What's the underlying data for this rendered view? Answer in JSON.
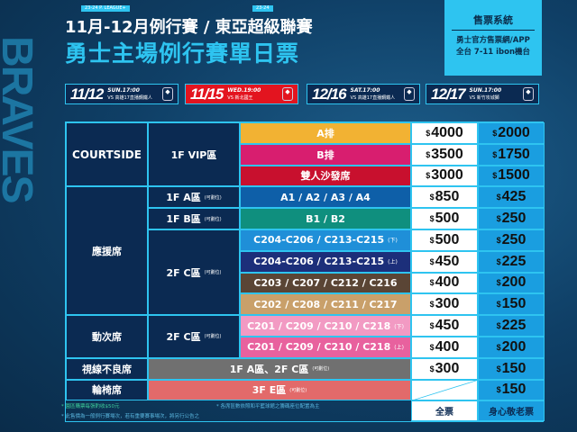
{
  "side_text": "BRAVES",
  "header": {
    "line1": "11月-12月例行賽 / 東亞超級聯賽",
    "line2": "勇士主場例行賽單日票",
    "tag1": "23-24 P. LEAGUE+",
    "tag2": "23-24"
  },
  "sales": {
    "title": "售票系統",
    "line1": "勇士官方售票網/APP",
    "line2": "全台 7-11 ibon機台"
  },
  "games": [
    {
      "date": "11/12",
      "time": "SUN.17:00",
      "opponent": "VS 高雄17直播鋼鐵人",
      "highlight": false
    },
    {
      "date": "11/15",
      "time": "WED.19:00",
      "opponent": "VS 新北國王",
      "highlight": true
    },
    {
      "date": "12/16",
      "time": "SAT.17:00",
      "opponent": "VS 高雄17直播鋼鐵人",
      "highlight": false
    },
    {
      "date": "12/17",
      "time": "SUN.17:00",
      "opponent": "VS 新竹攻城獅",
      "highlight": false
    }
  ],
  "table": {
    "sections": {
      "courtside": "COURTSIDE",
      "cheer": "應援席",
      "mobile": "動次席",
      "obstructed": "視線不良席",
      "wheelchair": "輪椅席"
    },
    "zones": {
      "vip": "1F VIP區",
      "a": "1F A區",
      "b": "1F B區",
      "c1": "2F C區",
      "c2": "2F C區",
      "obstructed": "1F A區、2F C區",
      "wheelchair": "3F E區"
    },
    "note": "(可劃位)",
    "currency": "$",
    "rows": [
      {
        "seats": "A排",
        "color": "#f2b233",
        "full": "4000",
        "concession": "2000"
      },
      {
        "seats": "B排",
        "color": "#d81e6f",
        "full": "3500",
        "concession": "1750"
      },
      {
        "seats": "雙人沙發席",
        "color": "#c8102e",
        "full": "3000",
        "concession": "1500"
      },
      {
        "seats": "A1 / A2 / A3 / A4",
        "color": "#0e5fa8",
        "full": "850",
        "concession": "425"
      },
      {
        "seats": "B1 / B2",
        "color": "#0f8f7e",
        "full": "500",
        "concession": "250"
      },
      {
        "seats": "C204-C206 / C213-C215",
        "suffix": "(下)",
        "color": "#1f8fd8",
        "full": "500",
        "concession": "250"
      },
      {
        "seats": "C204-C206 / C213-C215",
        "suffix": "(上)",
        "color": "#1c2f7a",
        "full": "450",
        "concession": "225"
      },
      {
        "seats": "C203 / C207 / C212 / C216",
        "color": "#5a4535",
        "full": "400",
        "concession": "200"
      },
      {
        "seats": "C202 / C208 / C211 / C217",
        "color": "#c9a06a",
        "full": "300",
        "concession": "150"
      },
      {
        "seats": "C201 / C209 / C210 / C218",
        "suffix": "(下)",
        "color": "#f29ac3",
        "full": "450",
        "concession": "225"
      },
      {
        "seats": "C201 / C209 / C210 / C218",
        "suffix": "(上)",
        "color": "#e8619e",
        "full": "400",
        "concession": "200"
      },
      {
        "seats": "",
        "color": "#707070",
        "full": "300",
        "concession": "150"
      },
      {
        "seats": "",
        "color": "#e26a6a",
        "full": "",
        "concession": "150"
      }
    ],
    "footer": {
      "full": "全票",
      "concession": "身心敬老票"
    }
  },
  "notes": {
    "n1": "* 園區購票每張酌收$50元",
    "n2": "* 各席區數依照和平籃球館之籌碼座位配置為主",
    "n3": "* 此售價為一般例行賽場次，若有重要賽事場次，將另行公告之"
  }
}
